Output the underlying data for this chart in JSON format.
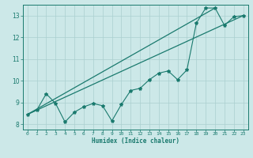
{
  "xlabel": "Humidex (Indice chaleur)",
  "ylabel": "",
  "background_color": "#cce8e8",
  "line_color": "#1a7a6e",
  "grid_color": "#aacfcf",
  "xlim": [
    -0.5,
    23.5
  ],
  "ylim": [
    7.75,
    13.5
  ],
  "xticks": [
    0,
    1,
    2,
    3,
    4,
    5,
    6,
    7,
    8,
    9,
    10,
    11,
    12,
    13,
    14,
    15,
    16,
    17,
    18,
    19,
    20,
    21,
    22,
    23
  ],
  "yticks": [
    8,
    9,
    10,
    11,
    12,
    13
  ],
  "curve1_x": [
    0,
    1,
    2,
    3,
    4,
    5,
    6,
    7,
    8,
    9,
    10,
    11,
    12,
    13,
    14,
    15,
    16,
    17,
    18,
    19,
    20,
    21,
    22,
    23
  ],
  "curve1_y": [
    8.45,
    8.65,
    9.4,
    8.95,
    8.1,
    8.55,
    8.8,
    8.95,
    8.85,
    8.15,
    8.9,
    9.55,
    9.65,
    10.05,
    10.35,
    10.45,
    10.05,
    10.5,
    12.65,
    13.35,
    13.35,
    12.55,
    12.95,
    13.0
  ],
  "line1_x": [
    0,
    23
  ],
  "line1_y": [
    8.45,
    13.0
  ],
  "line2_x": [
    0,
    20
  ],
  "line2_y": [
    8.45,
    13.35
  ]
}
